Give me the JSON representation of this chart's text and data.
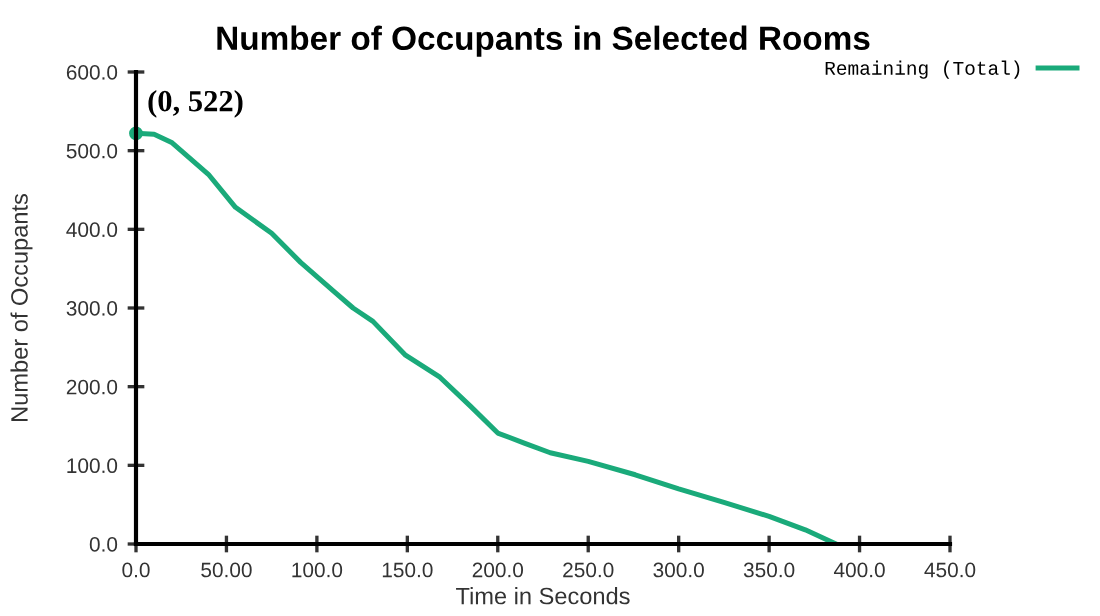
{
  "chart_data": {
    "type": "line",
    "title": "Number of Occupants in Selected Rooms",
    "xlabel": "Time in Seconds",
    "ylabel": "Number of Occupants",
    "x": [
      0,
      10,
      20,
      40,
      55,
      75,
      91,
      110,
      120,
      131,
      149,
      168,
      185,
      200,
      215,
      229,
      250,
      276,
      300,
      325,
      350,
      370,
      387
    ],
    "series": [
      {
        "name": "Remaining (Total)",
        "color": "#1aaa7a",
        "values": [
          522,
          521,
          510,
          470,
          428,
          395,
          358,
          320,
          300,
          283,
          240,
          212,
          175,
          141,
          128,
          116,
          105,
          88,
          70,
          53,
          35,
          18,
          0
        ]
      }
    ],
    "annotations": [
      {
        "text": "(0, 522)",
        "x": 0,
        "y": 522
      }
    ],
    "xlim": [
      0,
      450
    ],
    "xticks": [
      {
        "value": 0,
        "label": "0.0"
      },
      {
        "value": 50,
        "label": "50.00"
      },
      {
        "value": 100,
        "label": "100.0"
      },
      {
        "value": 150,
        "label": "150.0"
      },
      {
        "value": 200,
        "label": "200.0"
      },
      {
        "value": 250,
        "label": "250.0"
      },
      {
        "value": 300,
        "label": "300.0"
      },
      {
        "value": 350,
        "label": "350.0"
      },
      {
        "value": 400,
        "label": "400.0"
      },
      {
        "value": 450,
        "label": "450.0"
      }
    ],
    "ylim": [
      0,
      600
    ],
    "yticks": [
      {
        "value": 0,
        "label": "0.0"
      },
      {
        "value": 100,
        "label": "100.0"
      },
      {
        "value": 200,
        "label": "200.0"
      },
      {
        "value": 300,
        "label": "300.0"
      },
      {
        "value": 400,
        "label": "400.0"
      },
      {
        "value": 500,
        "label": "500.0"
      },
      {
        "value": 600,
        "label": "600.0"
      }
    ],
    "grid": false,
    "legend": "top right"
  }
}
